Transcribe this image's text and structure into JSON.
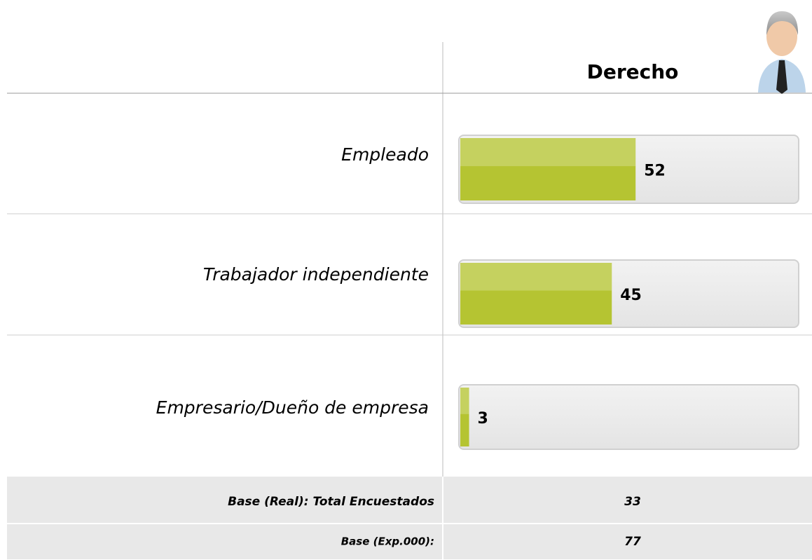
{
  "chart_data": {
    "type": "bar",
    "orientation": "horizontal",
    "column_title": "Derecho",
    "categories": [
      "Empleado",
      "Trabajador independiente",
      "Empresario/Dueño de empresa"
    ],
    "values": [
      52,
      45,
      3
    ],
    "color": "#b5c432",
    "xlim": [
      0,
      100
    ],
    "base_rows": [
      {
        "label": "Base (Real): Total Encuestados",
        "value": 33
      },
      {
        "label": "Base (Exp.000):",
        "value": 77
      }
    ]
  }
}
